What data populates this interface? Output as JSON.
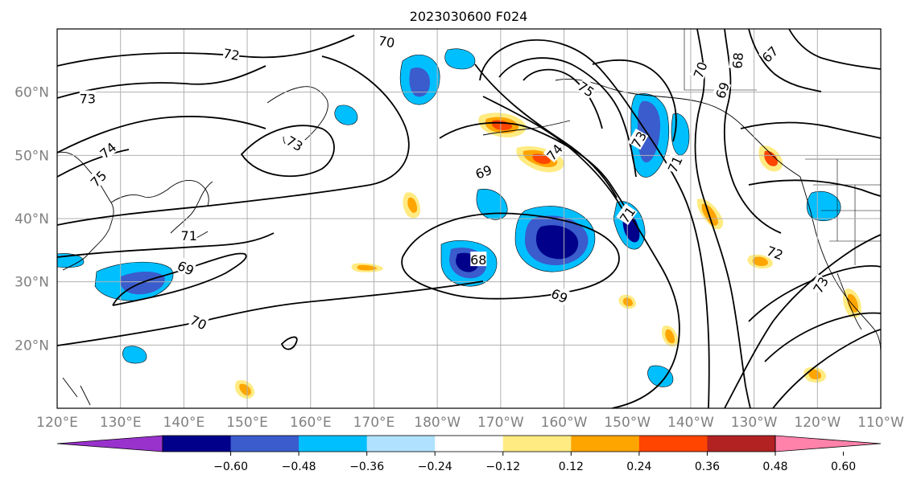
{
  "title": "2023030600 F024",
  "map": {
    "projection": "equirectangular",
    "lon_range": [
      120,
      250
    ],
    "lat_range": [
      10,
      70
    ],
    "grid": true,
    "lon_ticks": [
      {
        "lon": 120,
        "label": "120°E"
      },
      {
        "lon": 130,
        "label": "130°E"
      },
      {
        "lon": 140,
        "label": "140°E"
      },
      {
        "lon": 150,
        "label": "150°E"
      },
      {
        "lon": 160,
        "label": "160°E"
      },
      {
        "lon": 170,
        "label": "170°E"
      },
      {
        "lon": 180,
        "label": "180°W"
      },
      {
        "lon": 190,
        "label": "170°W"
      },
      {
        "lon": 200,
        "label": "160°W"
      },
      {
        "lon": 210,
        "label": "150°W"
      },
      {
        "lon": 220,
        "label": "140°W"
      },
      {
        "lon": 230,
        "label": "130°W"
      },
      {
        "lon": 240,
        "label": "120°W"
      },
      {
        "lon": 250,
        "label": "110°W"
      }
    ],
    "lat_ticks": [
      {
        "lat": 20,
        "label": "20°N"
      },
      {
        "lat": 30,
        "label": "30°N"
      },
      {
        "lat": 40,
        "label": "40°N"
      },
      {
        "lat": 50,
        "label": "50°N"
      },
      {
        "lat": 60,
        "label": "60°N"
      }
    ],
    "contour_labels": [
      {
        "text": "72",
        "lon": 147.5,
        "lat": 66.0,
        "rot": 10
      },
      {
        "text": "73",
        "lon": 124.8,
        "lat": 59.0,
        "rot": 0
      },
      {
        "text": "74",
        "lon": 128.0,
        "lat": 50.8,
        "rot": -40
      },
      {
        "text": "75",
        "lon": 126.5,
        "lat": 46.3,
        "rot": -45
      },
      {
        "text": "70",
        "lon": 172.0,
        "lat": 68.0,
        "rot": 10
      },
      {
        "text": "73",
        "lon": 157.5,
        "lat": 51.9,
        "rot": 30
      },
      {
        "text": "69",
        "lon": 187.3,
        "lat": 47.4,
        "rot": -20
      },
      {
        "text": "74",
        "lon": 198.5,
        "lat": 50.5,
        "rot": -50
      },
      {
        "text": "75",
        "lon": 203.5,
        "lat": 60.5,
        "rot": 35
      },
      {
        "text": "73",
        "lon": 211.8,
        "lat": 52.5,
        "rot": -60
      },
      {
        "text": "71",
        "lon": 210.0,
        "lat": 40.6,
        "rot": -55
      },
      {
        "text": "71",
        "lon": 217.5,
        "lat": 48.6,
        "rot": -65
      },
      {
        "text": "70",
        "lon": 221.5,
        "lat": 63.5,
        "rot": -70
      },
      {
        "text": "69",
        "lon": 225.0,
        "lat": 60.3,
        "rot": -70
      },
      {
        "text": "68",
        "lon": 227.4,
        "lat": 65.0,
        "rot": -85
      },
      {
        "text": "67",
        "lon": 232.5,
        "lat": 66.0,
        "rot": -45
      },
      {
        "text": "71",
        "lon": 140.8,
        "lat": 37.3,
        "rot": 0
      },
      {
        "text": "69",
        "lon": 140.3,
        "lat": 32.2,
        "rot": 25
      },
      {
        "text": "70",
        "lon": 142.3,
        "lat": 23.6,
        "rot": 25
      },
      {
        "text": "68",
        "lon": 186.5,
        "lat": 33.5,
        "rot": 0
      },
      {
        "text": "69",
        "lon": 199.3,
        "lat": 27.8,
        "rot": 25
      },
      {
        "text": "72",
        "lon": 233.3,
        "lat": 34.6,
        "rot": 20
      },
      {
        "text": "73",
        "lon": 240.5,
        "lat": 29.5,
        "rot": -60
      }
    ]
  },
  "colorbar": {
    "tick_labels": [
      "−0.60",
      "−0.48",
      "−0.36",
      "−0.24",
      "−0.12",
      "0.12",
      "0.24",
      "0.36",
      "0.48",
      "0.60"
    ],
    "bins": [
      "#9932cc",
      "#00008b",
      "#3a5ccc",
      "#00bfff",
      "#b0e2ff",
      "#ffffff",
      "#ffeb82",
      "#ffa500",
      "#ff4500",
      "#b22222",
      "#ff82ab"
    ]
  },
  "colors": {
    "grid": "#b0b0b0",
    "contour": "#000000",
    "tick_label": "#808080"
  }
}
